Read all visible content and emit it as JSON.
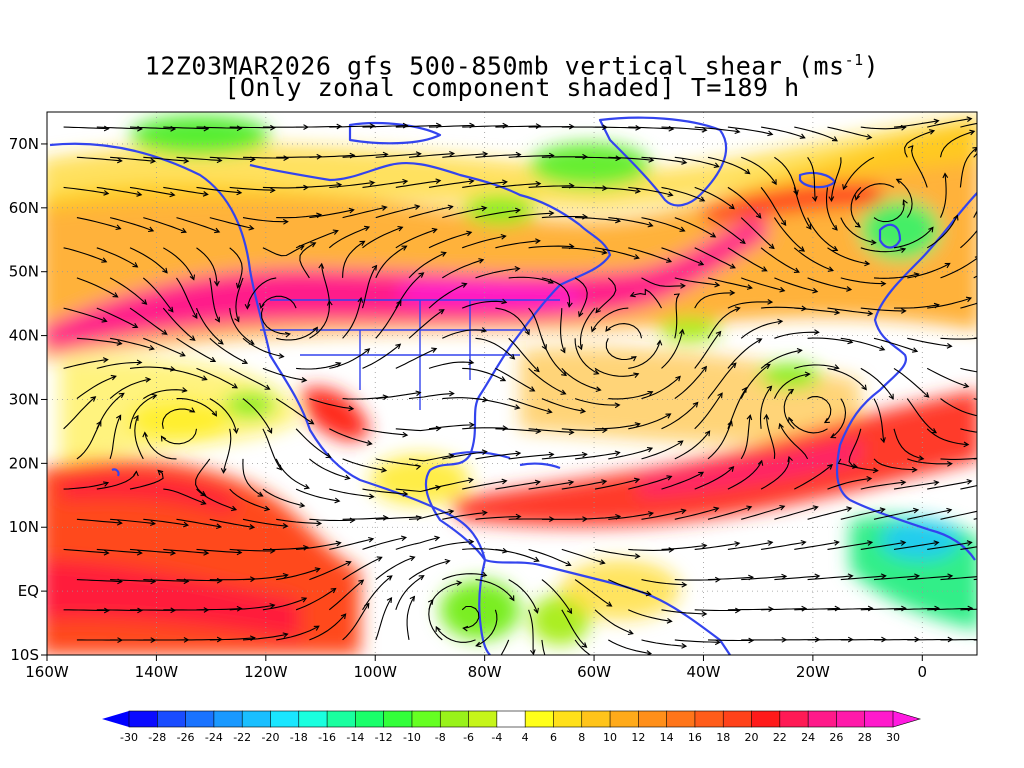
{
  "title": {
    "line1_prefix": "12Z03MAR2026 gfs 500-850mb vertical shear (ms",
    "line1_sup": "-1",
    "line1_suffix": ")",
    "line2": "[Only zonal component shaded] T=189 h"
  },
  "map": {
    "lon_range": [
      -160,
      10
    ],
    "lat_range": [
      -10,
      75
    ],
    "lat_ticks": [
      {
        "value": 70,
        "label": "70N"
      },
      {
        "value": 60,
        "label": "60N"
      },
      {
        "value": 50,
        "label": "50N"
      },
      {
        "value": 40,
        "label": "40N"
      },
      {
        "value": 30,
        "label": "30N"
      },
      {
        "value": 20,
        "label": "20N"
      },
      {
        "value": 10,
        "label": "10N"
      },
      {
        "value": 0,
        "label": "EQ"
      },
      {
        "value": -10,
        "label": "10S"
      }
    ],
    "lon_ticks": [
      {
        "value": -160,
        "label": "160W"
      },
      {
        "value": -140,
        "label": "140W"
      },
      {
        "value": -120,
        "label": "120W"
      },
      {
        "value": -100,
        "label": "100W"
      },
      {
        "value": -80,
        "label": "80W"
      },
      {
        "value": -60,
        "label": "60W"
      },
      {
        "value": -40,
        "label": "40W"
      },
      {
        "value": -20,
        "label": "20W"
      },
      {
        "value": 0,
        "label": "0"
      }
    ],
    "coast_color": "#3344ee",
    "streamline_color": "#000000"
  },
  "colorbar": {
    "labels": [
      "-30",
      "-28",
      "-26",
      "-24",
      "-22",
      "-20",
      "-18",
      "-16",
      "-14",
      "-12",
      "-10",
      "-8",
      "-6",
      "-4",
      "4",
      "6",
      "8",
      "10",
      "12",
      "14",
      "16",
      "18",
      "20",
      "22",
      "24",
      "26",
      "28",
      "30"
    ],
    "colors": [
      "#0a0aff",
      "#1a4cff",
      "#1a73ff",
      "#1a99ff",
      "#1abfff",
      "#1ae6ff",
      "#1affdf",
      "#1aff9f",
      "#1aff6a",
      "#33ff3a",
      "#66ff22",
      "#99f21a",
      "#c6f51a",
      "#ffffff",
      "#ffff1a",
      "#ffe01a",
      "#ffc41a",
      "#ffaa1a",
      "#ff8f1a",
      "#ff751a",
      "#ff5c1a",
      "#ff421a",
      "#ff1a1a",
      "#ff1a55",
      "#ff1a8a",
      "#ff1aaa",
      "#ff1acc"
    ],
    "under_color": "#0000ff",
    "over_color": "#ff1ae0"
  }
}
